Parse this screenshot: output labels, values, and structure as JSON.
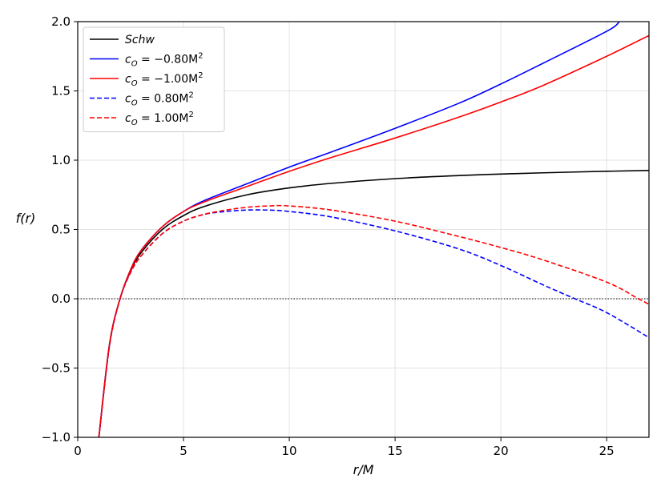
{
  "chart_data": {
    "type": "line",
    "xlabel": "r/M",
    "ylabel": "f(r)",
    "xlim": [
      0,
      27
    ],
    "ylim": [
      -1.0,
      2.0
    ],
    "grid": true,
    "legend_position": "upper-left",
    "xticks": [
      0,
      5,
      10,
      15,
      20,
      25
    ],
    "xtick_labels": [
      "0",
      "5",
      "10",
      "15",
      "20",
      "25"
    ],
    "yticks": [
      -1.0,
      -0.5,
      0.0,
      0.5,
      1.0,
      1.5,
      2.0
    ],
    "ytick_labels": [
      "−1.0",
      "−0.5",
      "0.0",
      "0.5",
      "1.0",
      "1.5",
      "2.0"
    ],
    "reference_line": {
      "y": 0.0,
      "style": "dotted",
      "color": "#000000"
    },
    "series": [
      {
        "name": "Schw",
        "color": "#000000",
        "style": "solid",
        "x": [
          1,
          1.5,
          2,
          2.5,
          3,
          4,
          5,
          6,
          8,
          10,
          12,
          15,
          18,
          20,
          22,
          25,
          27
        ],
        "y": [
          -1.0,
          -0.333,
          0.0,
          0.2,
          0.333,
          0.5,
          0.6,
          0.667,
          0.75,
          0.8,
          0.833,
          0.867,
          0.889,
          0.9,
          0.909,
          0.92,
          0.926
        ]
      },
      {
        "name": "c_O = −0.80M²",
        "color": "#0000ff",
        "style": "solid",
        "x": [
          1,
          1.5,
          2,
          2.5,
          3,
          4,
          5,
          6,
          8,
          10,
          12,
          15,
          18,
          20,
          22,
          25,
          25.6
        ],
        "y": [
          -1.0,
          -0.33,
          0.0,
          0.21,
          0.35,
          0.52,
          0.63,
          0.71,
          0.83,
          0.95,
          1.06,
          1.23,
          1.41,
          1.55,
          1.7,
          1.93,
          2.0
        ]
      },
      {
        "name": "c_O = −1.00M²",
        "color": "#ff0000",
        "style": "solid",
        "x": [
          1,
          1.5,
          2,
          2.5,
          3,
          4,
          5,
          6,
          8,
          10,
          12,
          15,
          18,
          20,
          22,
          25,
          27
        ],
        "y": [
          -1.0,
          -0.33,
          0.0,
          0.21,
          0.35,
          0.52,
          0.63,
          0.7,
          0.81,
          0.92,
          1.02,
          1.16,
          1.31,
          1.42,
          1.54,
          1.75,
          1.9
        ]
      },
      {
        "name": "c_O = 0.80M²",
        "color": "#0000ff",
        "style": "dashed",
        "x": [
          1,
          1.5,
          2,
          2.5,
          3,
          4,
          5,
          6,
          7,
          8,
          9,
          10,
          12,
          15,
          18,
          20,
          22,
          23.5,
          25,
          27
        ],
        "y": [
          -1.0,
          -0.34,
          0.0,
          0.19,
          0.31,
          0.47,
          0.56,
          0.61,
          0.63,
          0.64,
          0.64,
          0.63,
          0.59,
          0.49,
          0.36,
          0.24,
          0.1,
          0.0,
          -0.1,
          -0.28
        ]
      },
      {
        "name": "c_O = 1.00M²",
        "color": "#ff0000",
        "style": "dashed",
        "x": [
          1,
          1.5,
          2,
          2.5,
          3,
          4,
          5,
          6,
          7,
          8,
          9,
          10,
          12,
          15,
          18,
          20,
          22,
          25,
          26.5,
          27
        ],
        "y": [
          -1.0,
          -0.34,
          0.0,
          0.19,
          0.31,
          0.47,
          0.56,
          0.61,
          0.64,
          0.66,
          0.67,
          0.67,
          0.64,
          0.56,
          0.45,
          0.37,
          0.28,
          0.12,
          0.0,
          -0.04
        ]
      }
    ],
    "legend": [
      {
        "series": 0,
        "label_main": "Schw",
        "label_sub": "",
        "label_rest": "",
        "label_sup": ""
      },
      {
        "series": 1,
        "label_main": "c",
        "label_sub": "O",
        "label_rest": " = −0.80M",
        "label_sup": "2"
      },
      {
        "series": 2,
        "label_main": "c",
        "label_sub": "O",
        "label_rest": " = −1.00M",
        "label_sup": "2"
      },
      {
        "series": 3,
        "label_main": "c",
        "label_sub": "O",
        "label_rest": " = 0.80M",
        "label_sup": "2"
      },
      {
        "series": 4,
        "label_main": "c",
        "label_sub": "O",
        "label_rest": " = 1.00M",
        "label_sup": "2"
      }
    ]
  }
}
